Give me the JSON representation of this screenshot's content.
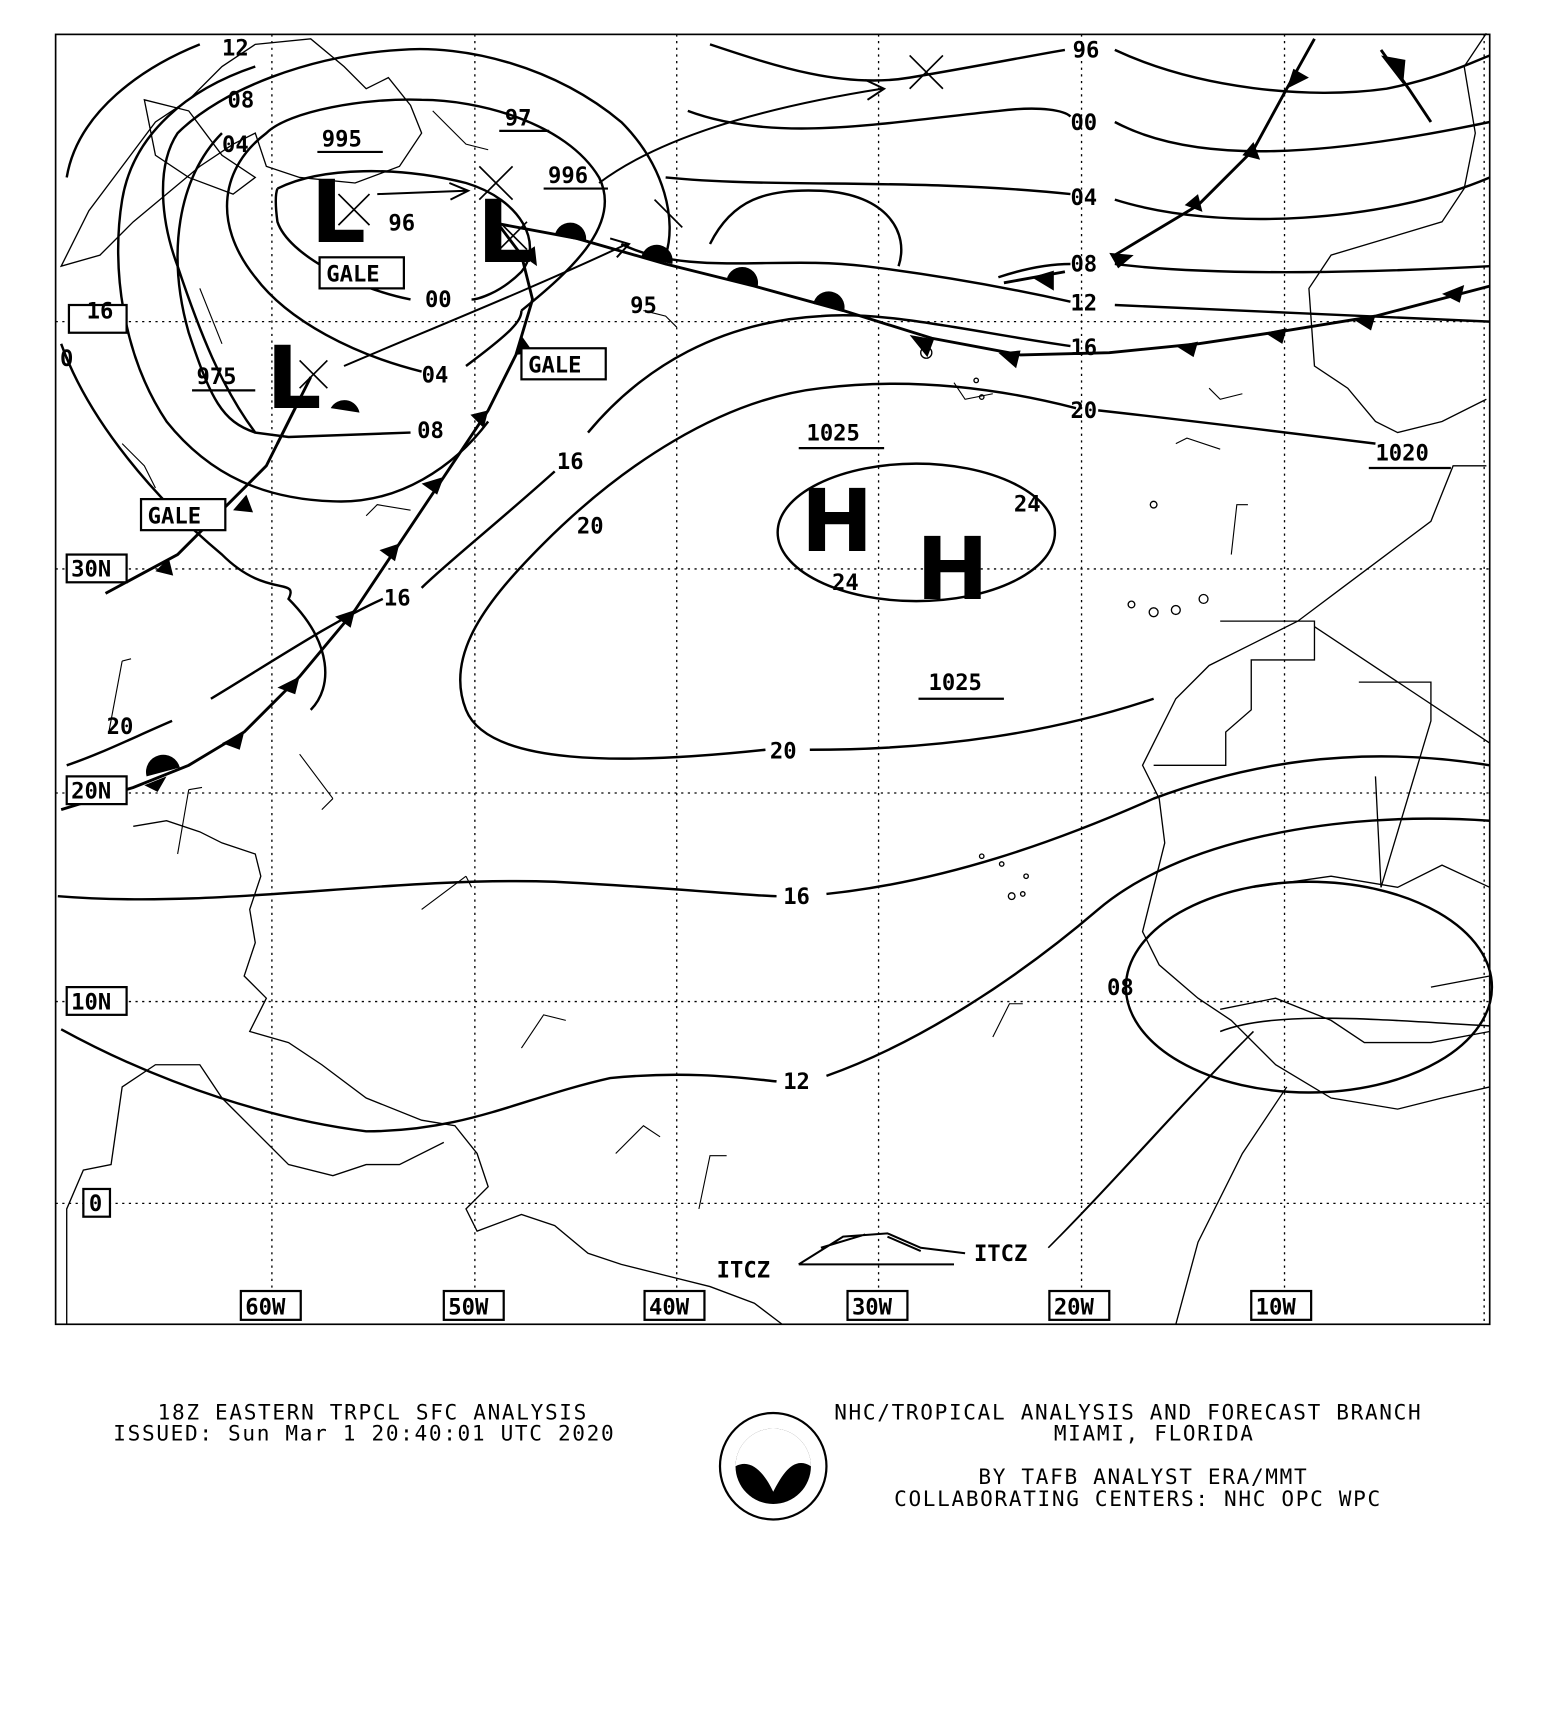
{
  "map": {
    "type": "surface-analysis",
    "lat_labels": [
      "30N",
      "20N",
      "10N",
      "0"
    ],
    "lon_labels": [
      "60W",
      "50W",
      "40W",
      "30W",
      "20W",
      "10W"
    ],
    "edge_label": "16",
    "edge_label_left": "0",
    "isobar_labels": {
      "l12": "12",
      "l08a": "08",
      "l04a": "04",
      "l96": "96",
      "l00a": "00",
      "l04b": "04",
      "l08b": "08",
      "l95": "95",
      "l16a": "16",
      "l20a": "20",
      "l16b": "16",
      "l20b": "20",
      "l24a": "24",
      "l24b": "24",
      "l20c": "20",
      "l16c": "16",
      "l12b": "12",
      "l08c": "08",
      "l96b": "96",
      "l00b": "00",
      "l04c": "04",
      "l08d": "08",
      "l12c": "12",
      "l16d": "16",
      "l20d": "20"
    },
    "pressure_labels": {
      "p995": "995",
      "p97": "97",
      "p996": "996",
      "p975": "975",
      "p1025a": "1025",
      "p1025b": "1025",
      "p1020": "1020"
    },
    "centers": {
      "low1": "L",
      "low2": "L",
      "low3": "L",
      "high1": "H",
      "high2": "H"
    },
    "warnings": [
      "GALE",
      "GALE",
      "GALE"
    ],
    "itcz": [
      "ITCZ",
      "ITCZ"
    ]
  },
  "footer": {
    "title": "18Z EASTERN TRPCL SFC ANALYSIS",
    "issued": "ISSUED: Sun Mar 1 20:40:01 UTC 2020",
    "office": "NHC/TROPICAL ANALYSIS AND FORECAST BRANCH",
    "location": "MIAMI,  FLORIDA",
    "analyst": "BY TAFB ANALYST  ERA/MMT",
    "collab": "COLLABORATING CENTERS: NHC OPC WPC",
    "logo_text": "NOAA"
  }
}
